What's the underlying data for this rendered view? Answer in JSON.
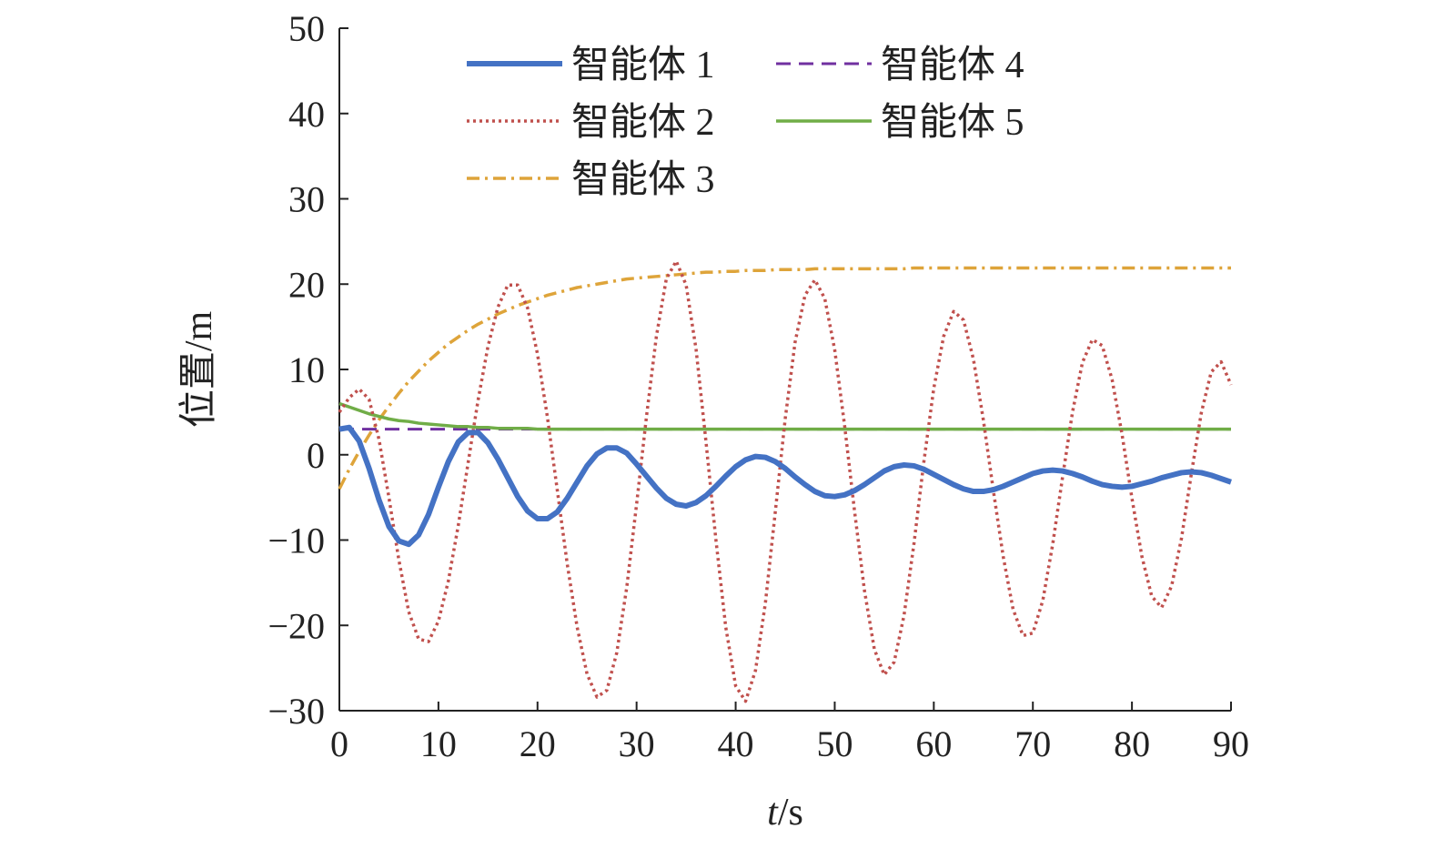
{
  "chart_data": {
    "type": "line",
    "xlabel_var": "t",
    "xlabel_unit": "/s",
    "ylabel": "位置/m",
    "xlim": [
      0,
      90
    ],
    "ylim": [
      -30,
      50
    ],
    "xticks": [
      0,
      10,
      20,
      30,
      40,
      50,
      60,
      70,
      80,
      90
    ],
    "yticks": [
      -30,
      -20,
      -10,
      0,
      10,
      20,
      30,
      40,
      50
    ],
    "ytick_labels": [
      "−30",
      "−20",
      "−10",
      "0",
      "10",
      "20",
      "30",
      "40",
      "50"
    ],
    "grid": false,
    "legend_position": "top",
    "series": [
      {
        "name": "智能体 1",
        "color": "#4472c4",
        "dash": "solid",
        "x": [
          0,
          1,
          2,
          3,
          4,
          5,
          6,
          7,
          8,
          9,
          10,
          11,
          12,
          13,
          14,
          15,
          16,
          17,
          18,
          19,
          20,
          21,
          22,
          23,
          24,
          25,
          26,
          27,
          28,
          29,
          30,
          31,
          32,
          33,
          34,
          35,
          36,
          37,
          38,
          39,
          40,
          41,
          42,
          43,
          44,
          45,
          46,
          47,
          48,
          49,
          50,
          51,
          52,
          53,
          54,
          55,
          56,
          57,
          58,
          59,
          60,
          61,
          62,
          63,
          64,
          65,
          66,
          67,
          68,
          69,
          70,
          71,
          72,
          73,
          74,
          75,
          76,
          77,
          78,
          79,
          80,
          81,
          82,
          83,
          84,
          85,
          86,
          87,
          88,
          89,
          90
        ],
        "y": [
          3,
          3.2,
          1.6,
          -1.6,
          -5.3,
          -8.4,
          -10.1,
          -10.5,
          -9.4,
          -7,
          -3.8,
          -0.8,
          1.5,
          2.6,
          2.6,
          1.4,
          -0.5,
          -2.7,
          -4.9,
          -6.6,
          -7.5,
          -7.5,
          -6.7,
          -5.1,
          -3.2,
          -1.3,
          0.1,
          0.8,
          0.8,
          0.2,
          -1.1,
          -2.5,
          -3.9,
          -5.1,
          -5.8,
          -6,
          -5.6,
          -4.8,
          -3.7,
          -2.5,
          -1.4,
          -0.6,
          -0.2,
          -0.3,
          -0.8,
          -1.6,
          -2.6,
          -3.5,
          -4.3,
          -4.8,
          -4.9,
          -4.7,
          -4.2,
          -3.5,
          -2.7,
          -1.9,
          -1.4,
          -1.2,
          -1.3,
          -1.7,
          -2.3,
          -2.9,
          -3.5,
          -4,
          -4.3,
          -4.3,
          -4.1,
          -3.7,
          -3.2,
          -2.7,
          -2.2,
          -1.9,
          -1.8,
          -1.9,
          -2.2,
          -2.6,
          -3.1,
          -3.5,
          -3.7,
          -3.8,
          -3.7,
          -3.4,
          -3.1,
          -2.7,
          -2.4,
          -2.1,
          -2,
          -2.1,
          -2.4,
          -2.8,
          -3.2
        ]
      },
      {
        "name": "智能体 2",
        "color": "#c0504d",
        "dash": "dotted",
        "x": [
          0,
          1,
          2,
          3,
          4,
          5,
          6,
          7,
          8,
          9,
          10,
          11,
          12,
          13,
          14,
          15,
          16,
          17,
          18,
          19,
          20,
          21,
          22,
          23,
          24,
          25,
          26,
          27,
          28,
          29,
          30,
          31,
          32,
          33,
          34,
          35,
          36,
          37,
          38,
          39,
          40,
          41,
          42,
          43,
          44,
          45,
          46,
          47,
          48,
          49,
          50,
          51,
          52,
          53,
          54,
          55,
          56,
          57,
          58,
          59,
          60,
          61,
          62,
          63,
          64,
          65,
          66,
          67,
          68,
          69,
          70,
          71,
          72,
          73,
          74,
          75,
          76,
          77,
          78,
          79,
          80,
          81,
          82,
          83,
          84,
          85,
          86,
          87,
          88,
          89,
          90
        ],
        "y": [
          5,
          6.7,
          7.7,
          6.5,
          1.8,
          -5,
          -12.3,
          -18.4,
          -21.6,
          -21.9,
          -19.5,
          -14.8,
          -8.3,
          -0.9,
          6.4,
          12.7,
          17.3,
          19.9,
          19.9,
          17.2,
          11.8,
          4.4,
          -4.2,
          -12.8,
          -20.2,
          -25.7,
          -28.4,
          -27.6,
          -23.2,
          -15.6,
          -5.8,
          4.5,
          13.9,
          20.6,
          22.7,
          19.9,
          12.4,
          1.6,
          -9.9,
          -20.2,
          -27.1,
          -28.9,
          -25.3,
          -17.4,
          -6.7,
          4.2,
          13.2,
          18.7,
          20.5,
          18.3,
          12.3,
          3.4,
          -6.6,
          -15.9,
          -22.8,
          -25.8,
          -24.3,
          -18.8,
          -10.4,
          -0.8,
          7.8,
          13.9,
          16.8,
          15.8,
          11.2,
          4.1,
          -4.1,
          -11.9,
          -18.1,
          -21.2,
          -20.9,
          -17.1,
          -10.5,
          -2.6,
          5,
          10.8,
          13.5,
          12.8,
          8.8,
          2.4,
          -5.1,
          -11.9,
          -16.6,
          -17.9,
          -15.4,
          -9.8,
          -2.2,
          4.9,
          9.7,
          10.9,
          8.2
        ]
      },
      {
        "name": "智能体 3",
        "color": "#dea43a",
        "dash": "dashdot",
        "x": [
          0,
          1,
          2,
          3,
          4,
          5,
          6,
          7,
          8,
          9,
          10,
          11,
          12,
          13,
          14,
          15,
          16,
          17,
          18,
          19,
          20,
          21,
          22,
          23,
          24,
          25,
          26,
          27,
          28,
          29,
          30,
          31,
          32,
          33,
          34,
          35,
          36,
          37,
          38,
          39,
          40,
          41,
          42,
          43,
          44,
          45,
          46,
          47,
          48,
          49,
          50,
          51,
          52,
          53,
          54,
          55,
          56,
          57,
          58,
          59,
          60,
          61,
          62,
          63,
          64,
          65,
          66,
          67,
          68,
          69,
          70,
          71,
          72,
          73,
          74,
          75,
          76,
          77,
          78,
          79,
          80,
          81,
          82,
          83,
          84,
          85,
          86,
          87,
          88,
          89,
          90
        ],
        "y": [
          -4,
          -1.7,
          0.4,
          2.3,
          4.1,
          5.7,
          7.2,
          8.6,
          9.8,
          11,
          12,
          13,
          13.8,
          14.6,
          15.3,
          15.9,
          16.5,
          17,
          17.5,
          17.9,
          18.3,
          18.7,
          19,
          19.3,
          19.6,
          19.8,
          20,
          20.2,
          20.4,
          20.6,
          20.7,
          20.8,
          20.9,
          21,
          21.1,
          21.2,
          21.3,
          21.4,
          21.4,
          21.5,
          21.5,
          21.6,
          21.6,
          21.6,
          21.7,
          21.7,
          21.7,
          21.7,
          21.8,
          21.8,
          21.8,
          21.8,
          21.8,
          21.8,
          21.8,
          21.8,
          21.8,
          21.8,
          21.9,
          21.9,
          21.9,
          21.9,
          21.9,
          21.9,
          21.9,
          21.9,
          21.9,
          21.9,
          21.9,
          21.9,
          21.9,
          21.9,
          21.9,
          21.9,
          21.9,
          21.9,
          21.9,
          21.9,
          21.9,
          21.9,
          21.9,
          21.9,
          21.9,
          21.9,
          21.9,
          21.9,
          21.9,
          21.9,
          21.9,
          21.9,
          21.9
        ]
      },
      {
        "name": "智能体 4",
        "color": "#7030a0",
        "dash": "dashed",
        "x": [
          0,
          90
        ],
        "y": [
          3,
          3
        ]
      },
      {
        "name": "智能体 5",
        "color": "#70ad47",
        "dash": "solid",
        "x": [
          0,
          1,
          2,
          3,
          4,
          5,
          6,
          7,
          8,
          9,
          10,
          11,
          12,
          13,
          14,
          15,
          16,
          17,
          18,
          19,
          20,
          21,
          22,
          23,
          24,
          25,
          26,
          27,
          28,
          29,
          30,
          31,
          32,
          33,
          34,
          35,
          36,
          37,
          38,
          39,
          40,
          41,
          42,
          43,
          44,
          45,
          46,
          47,
          48,
          49,
          50,
          51,
          52,
          53,
          54,
          55,
          56,
          57,
          58,
          59,
          60,
          61,
          62,
          63,
          64,
          65,
          66,
          67,
          68,
          69,
          70,
          71,
          72,
          73,
          74,
          75,
          76,
          77,
          78,
          79,
          80,
          81,
          82,
          83,
          84,
          85,
          86,
          87,
          88,
          89,
          90
        ],
        "y": [
          6,
          5.6,
          5.2,
          4.8,
          4.5,
          4.2,
          4,
          3.9,
          3.7,
          3.6,
          3.5,
          3.4,
          3.3,
          3.3,
          3.2,
          3.2,
          3.1,
          3.1,
          3.1,
          3.1,
          3,
          3,
          3,
          3,
          3,
          3,
          3,
          3,
          3,
          3,
          3,
          3,
          3,
          3,
          3,
          3,
          3,
          3,
          3,
          3,
          3,
          3,
          3,
          3,
          3,
          3,
          3,
          3,
          3,
          3,
          3,
          3,
          3,
          3,
          3,
          3,
          3,
          3,
          3,
          3,
          3,
          3,
          3,
          3,
          3,
          3,
          3,
          3,
          3,
          3,
          3,
          3,
          3,
          3,
          3,
          3,
          3,
          3,
          3,
          3,
          3,
          3,
          3,
          3,
          3,
          3,
          3,
          3,
          3,
          3,
          3
        ]
      }
    ]
  }
}
